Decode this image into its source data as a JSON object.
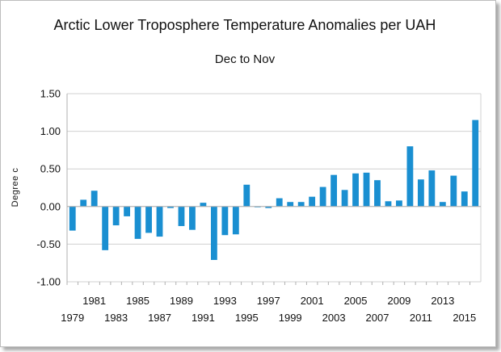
{
  "chart_data": {
    "type": "bar",
    "title": "Arctic Lower Troposphere Temperature Anomalies per UAH",
    "subtitle": "Dec to Nov",
    "xlabel": "",
    "ylabel": "Degree c",
    "ylim": [
      -1.0,
      1.5
    ],
    "yticks": [
      -1.0,
      -0.5,
      0.0,
      0.5,
      1.0,
      1.5
    ],
    "ytick_labels": [
      "-1.00",
      "-0.50",
      "0.00",
      "0.50",
      "1.00",
      "1.50"
    ],
    "grid": true,
    "bar_color": "#1a8fd1",
    "categories": [
      "1979",
      "1980",
      "1981",
      "1982",
      "1983",
      "1984",
      "1985",
      "1986",
      "1987",
      "1988",
      "1989",
      "1990",
      "1991",
      "1992",
      "1993",
      "1994",
      "1995",
      "1996",
      "1997",
      "1998",
      "1999",
      "2000",
      "2001",
      "2002",
      "2003",
      "2004",
      "2005",
      "2006",
      "2007",
      "2008",
      "2009",
      "2010",
      "2011",
      "2012",
      "2013",
      "2014",
      "2015",
      "2016"
    ],
    "values": [
      -0.32,
      0.09,
      0.21,
      -0.58,
      -0.25,
      -0.13,
      -0.43,
      -0.35,
      -0.4,
      -0.02,
      -0.26,
      -0.31,
      0.05,
      -0.71,
      -0.38,
      -0.37,
      0.29,
      -0.01,
      -0.02,
      0.11,
      0.06,
      0.06,
      0.13,
      0.26,
      0.42,
      0.22,
      0.44,
      0.45,
      0.35,
      0.07,
      0.08,
      0.8,
      0.36,
      0.48,
      0.06,
      0.41,
      0.2,
      1.15
    ],
    "x_labels_row1": [
      "1981",
      "1985",
      "1989",
      "1993",
      "1997",
      "2001",
      "2005",
      "2009",
      "2013"
    ],
    "x_labels_row2": [
      "1979",
      "1983",
      "1987",
      "1991",
      "1995",
      "1999",
      "2003",
      "2007",
      "2011",
      "2015"
    ]
  }
}
